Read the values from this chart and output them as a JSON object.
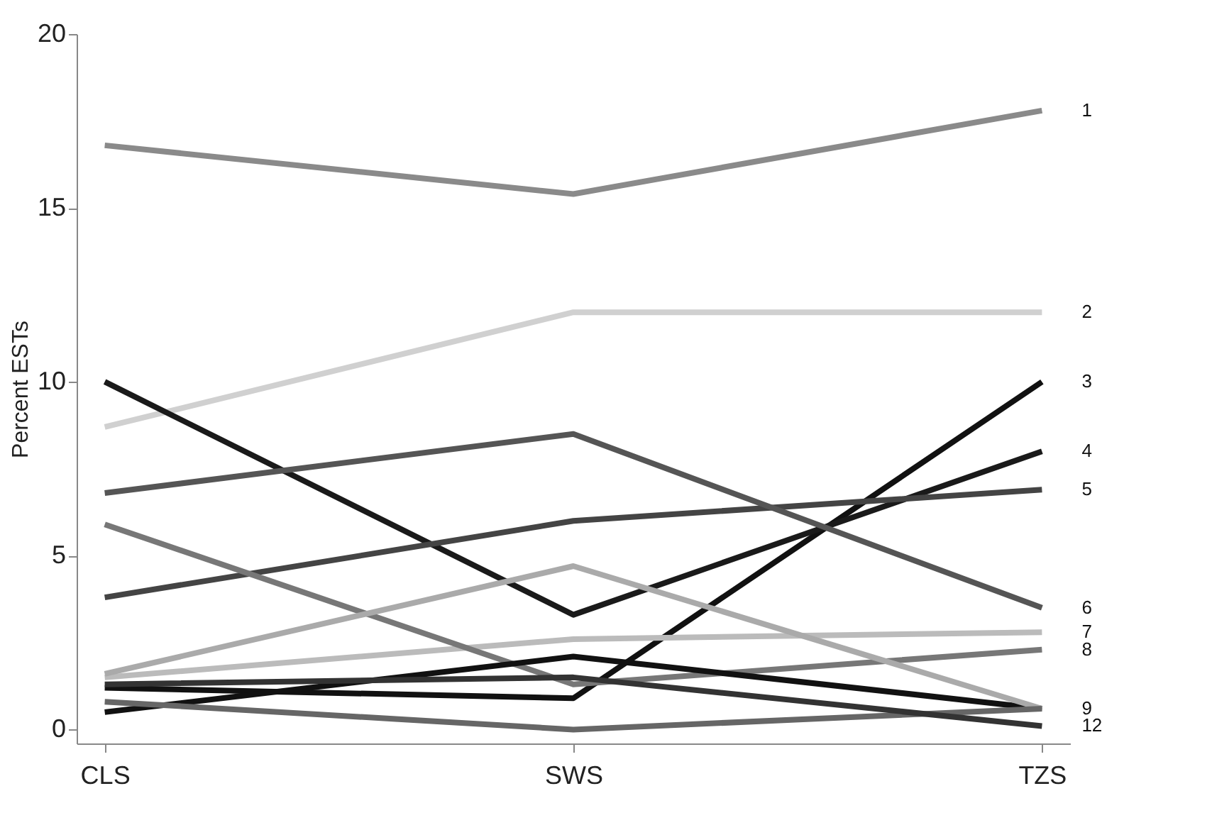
{
  "chart_data": {
    "type": "line",
    "ylabel": "Percent ESTs",
    "categories": [
      "CLS",
      "SWS",
      "TZS"
    ],
    "ylim": [
      -0.4,
      20
    ],
    "yticks": [
      0,
      5,
      10,
      15,
      20
    ],
    "grid": false,
    "marker": "none",
    "line_style": "solid",
    "series": [
      {
        "name": "1",
        "color": "#8a8a8a",
        "values": [
          16.8,
          15.4,
          17.8
        ]
      },
      {
        "name": "2",
        "color": "#d0d0d0",
        "values": [
          8.7,
          12.0,
          12.0
        ]
      },
      {
        "name": "3",
        "color": "#111111",
        "values": [
          1.2,
          0.9,
          10.0
        ]
      },
      {
        "name": "4",
        "color": "#1a1a1a",
        "values": [
          10.0,
          3.3,
          8.0
        ]
      },
      {
        "name": "5",
        "color": "#444444",
        "values": [
          3.8,
          6.0,
          6.9
        ]
      },
      {
        "name": "6",
        "color": "#555555",
        "values": [
          6.8,
          8.5,
          3.5
        ]
      },
      {
        "name": "7",
        "color": "#bbbbbb",
        "values": [
          1.5,
          2.6,
          2.8
        ]
      },
      {
        "name": "8",
        "color": "#777777",
        "values": [
          5.9,
          1.3,
          2.3
        ]
      },
      {
        "name": "9",
        "color": "#111111",
        "values": [
          0.5,
          2.1,
          0.6
        ]
      },
      {
        "color": "#aaaaaa",
        "values": [
          1.6,
          4.7,
          0.6
        ]
      },
      {
        "color": "#666666",
        "values": [
          0.8,
          0.0,
          0.6
        ]
      },
      {
        "name": "12",
        "color": "#333333",
        "values": [
          1.3,
          1.5,
          0.1
        ]
      }
    ]
  }
}
